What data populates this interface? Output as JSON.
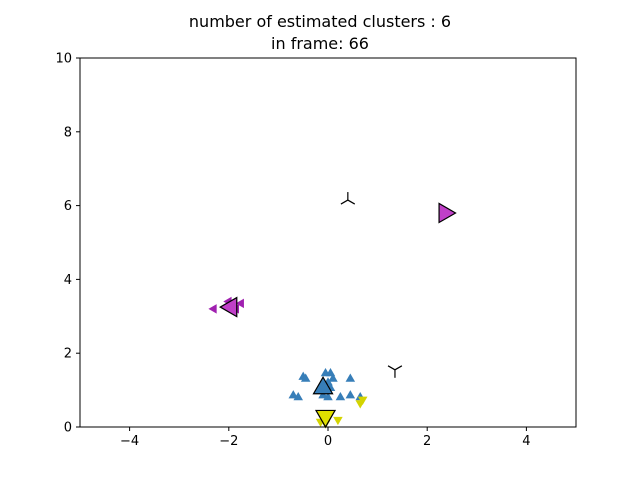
{
  "chart_data": {
    "type": "scatter",
    "title_line1": "number of estimated clusters : 6",
    "title_line2": "in frame: 66",
    "xlim": [
      -5,
      5
    ],
    "ylim": [
      0,
      10
    ],
    "xticks": [
      -4,
      -2,
      0,
      2,
      4
    ],
    "yticks": [
      0,
      2,
      4,
      6,
      8,
      10
    ],
    "grid": false,
    "colors": {
      "blue": "#377eb8",
      "magenta": "#a020b0",
      "magenta_center": "#c040c8",
      "yellow": "#d4d400",
      "yellow_center": "#e0e000",
      "black": "#000000"
    },
    "series": [
      {
        "marker": "triangle-up",
        "color": "blue",
        "points": [
          [
            -0.5,
            1.35
          ],
          [
            -0.45,
            1.3
          ],
          [
            -0.05,
            1.45
          ],
          [
            0.05,
            1.45
          ],
          [
            0.1,
            1.3
          ],
          [
            0.0,
            1.2
          ],
          [
            -0.1,
            1.1
          ],
          [
            0.05,
            1.05
          ],
          [
            0.45,
            1.3
          ],
          [
            -0.7,
            0.85
          ],
          [
            -0.6,
            0.8
          ],
          [
            0.25,
            0.8
          ],
          [
            0.45,
            0.85
          ],
          [
            0.65,
            0.8
          ],
          [
            -0.1,
            0.85
          ],
          [
            0.0,
            0.8
          ]
        ]
      },
      {
        "marker": "triangle-left",
        "color": "magenta",
        "points": [
          [
            -2.3,
            3.2
          ],
          [
            -2.0,
            3.4
          ],
          [
            -1.9,
            3.3
          ],
          [
            -1.85,
            3.2
          ],
          [
            -1.75,
            3.35
          ],
          [
            -2.05,
            3.25
          ]
        ]
      },
      {
        "marker": "triangle-down",
        "color": "yellow",
        "points": [
          [
            -0.15,
            0.15
          ],
          [
            0.2,
            0.2
          ],
          [
            0.7,
            0.75
          ],
          [
            0.65,
            0.65
          ],
          [
            -0.05,
            0.1
          ]
        ]
      }
    ],
    "centers": [
      {
        "marker": "triangle-up",
        "color": "blue",
        "x": -0.1,
        "y": 1.05
      },
      {
        "marker": "triangle-left",
        "color": "magenta_center",
        "x": -1.95,
        "y": 3.25
      },
      {
        "marker": "triangle-down",
        "color": "yellow_center",
        "x": -0.05,
        "y": 0.3
      },
      {
        "marker": "triangle-right",
        "color": "magenta_center",
        "x": 2.35,
        "y": 5.8
      },
      {
        "marker": "tri-up",
        "color": "black",
        "x": 0.4,
        "y": 6.15
      },
      {
        "marker": "tri-down",
        "color": "black",
        "x": 1.35,
        "y": 1.55
      }
    ]
  }
}
